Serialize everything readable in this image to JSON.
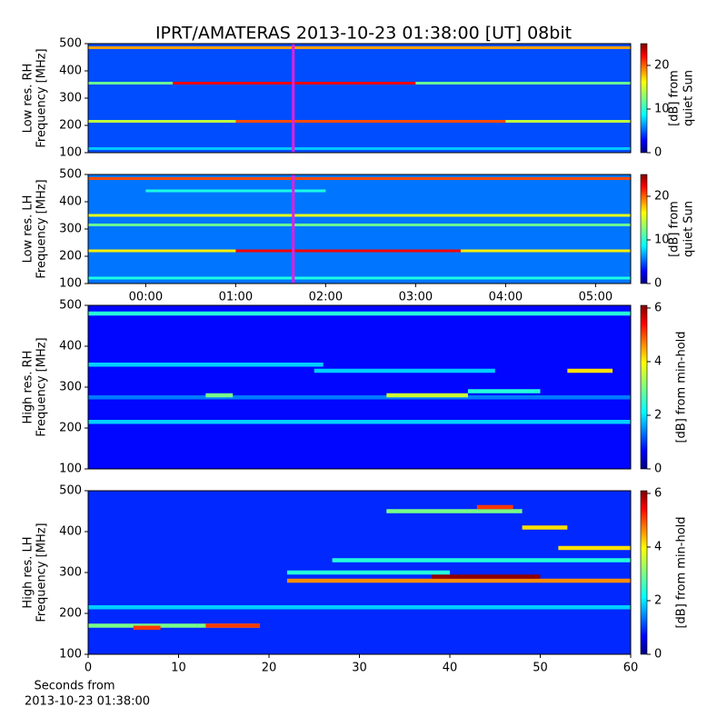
{
  "figure_title": "IPRT/AMATERAS 2013-10-23 01:38:00 [UT]   08bit",
  "xlabel_lines": [
    "Seconds from",
    "2013-10-23 01:38:00"
  ],
  "chart_data": [
    {
      "type": "heatmap",
      "ylabel_lines": [
        "Low res. RH",
        "Frequency [MHz]"
      ],
      "xlim": [
        -0.64,
        5.39
      ],
      "ylim": [
        100,
        500
      ],
      "yticks": [
        100,
        200,
        300,
        400,
        500
      ],
      "clim": [
        0,
        25
      ],
      "cticks": [
        0,
        10,
        20
      ],
      "clabel_lines": [
        "[dB] from",
        "quiet Sun"
      ],
      "colormap": "jet",
      "background_level": 5,
      "marker_x": 1.64,
      "marker_color": "#e020e0",
      "features": [
        {
          "x0": -0.64,
          "x1": 5.39,
          "freq": 485,
          "level": 18
        },
        {
          "x0": -0.64,
          "x1": 5.39,
          "freq": 355,
          "level": 12
        },
        {
          "x0": 0.3,
          "x1": 3.0,
          "freq": 355,
          "level": 22
        },
        {
          "x0": -0.64,
          "x1": 5.39,
          "freq": 215,
          "level": 14
        },
        {
          "x0": 1,
          "x1": 4,
          "freq": 215,
          "level": 20
        },
        {
          "x0": -0.64,
          "x1": 5.39,
          "freq": 115,
          "level": 8
        }
      ]
    },
    {
      "type": "heatmap",
      "ylabel_lines": [
        "Low res. LH",
        "Frequency [MHz]"
      ],
      "xlim": [
        -0.64,
        5.39
      ],
      "ylim": [
        100,
        500
      ],
      "yticks": [
        100,
        200,
        300,
        400,
        500
      ],
      "xticks": [
        {
          "value": 0,
          "label": "00:00"
        },
        {
          "value": 1,
          "label": "01:00"
        },
        {
          "value": 2,
          "label": "02:00"
        },
        {
          "value": 3,
          "label": "03:00"
        },
        {
          "value": 4,
          "label": "04:00"
        },
        {
          "value": 5,
          "label": "05:00"
        }
      ],
      "clim": [
        0,
        25
      ],
      "cticks": [
        0,
        10,
        20
      ],
      "clabel_lines": [
        "[dB] from",
        "quiet Sun"
      ],
      "colormap": "jet",
      "background_level": 6,
      "marker_x": 1.64,
      "marker_color": "#e020e0",
      "features": [
        {
          "x0": -0.64,
          "x1": 5.39,
          "freq": 485,
          "level": 20
        },
        {
          "x0": 0,
          "x1": 2,
          "freq": 440,
          "level": 10
        },
        {
          "x0": -0.64,
          "x1": 5.39,
          "freq": 350,
          "level": 15
        },
        {
          "x0": -0.64,
          "x1": 5.39,
          "freq": 315,
          "level": 12
        },
        {
          "x0": -0.64,
          "x1": 5.39,
          "freq": 220,
          "level": 16
        },
        {
          "x0": 1,
          "x1": 3.5,
          "freq": 220,
          "level": 22
        },
        {
          "x0": -0.64,
          "x1": 5.39,
          "freq": 120,
          "level": 10
        }
      ]
    },
    {
      "type": "heatmap",
      "ylabel_lines": [
        "High res. RH",
        "Frequency [MHz]"
      ],
      "xlim": [
        0,
        60
      ],
      "ylim": [
        100,
        500
      ],
      "yticks": [
        100,
        200,
        300,
        400,
        500
      ],
      "clim": [
        0,
        6.1
      ],
      "cticks": [
        0,
        2,
        4,
        6
      ],
      "clabel_lines": [
        "[dB] from min-hold"
      ],
      "colormap": "jet",
      "background_level": 0.8,
      "features": [
        {
          "x0": 0,
          "x1": 60,
          "freq": 480,
          "level": 2.5
        },
        {
          "x0": 0,
          "x1": 26,
          "freq": 355,
          "level": 2
        },
        {
          "x0": 0,
          "x1": 60,
          "freq": 275,
          "level": 1.5
        },
        {
          "x0": 13,
          "x1": 16,
          "freq": 280,
          "level": 3
        },
        {
          "x0": 33,
          "x1": 42,
          "freq": 280,
          "level": 3.5
        },
        {
          "x0": 42,
          "x1": 50,
          "freq": 290,
          "level": 2.5
        },
        {
          "x0": 53,
          "x1": 58,
          "freq": 340,
          "level": 4
        },
        {
          "x0": 25,
          "x1": 45,
          "freq": 340,
          "level": 2
        },
        {
          "x0": 0,
          "x1": 60,
          "freq": 215,
          "level": 2
        }
      ]
    },
    {
      "type": "heatmap",
      "ylabel_lines": [
        "High res. LH",
        "Frequency [MHz]"
      ],
      "xlim": [
        0,
        60
      ],
      "ylim": [
        100,
        500
      ],
      "yticks": [
        100,
        200,
        300,
        400,
        500
      ],
      "xticks": [
        0,
        10,
        20,
        30,
        40,
        50,
        60
      ],
      "clim": [
        0,
        6.1
      ],
      "cticks": [
        0,
        2,
        4,
        6
      ],
      "clabel_lines": [
        "[dB] from min-hold"
      ],
      "colormap": "jet",
      "background_level": 1,
      "features": [
        {
          "x0": 22,
          "x1": 60,
          "freq": 280,
          "level": 4.5
        },
        {
          "x0": 38,
          "x1": 50,
          "freq": 290,
          "level": 6
        },
        {
          "x0": 0,
          "x1": 19,
          "freq": 170,
          "level": 3
        },
        {
          "x0": 5,
          "x1": 8,
          "freq": 165,
          "level": 5
        },
        {
          "x0": 13,
          "x1": 19,
          "freq": 170,
          "level": 5
        },
        {
          "x0": 27,
          "x1": 60,
          "freq": 330,
          "level": 2.5
        },
        {
          "x0": 52,
          "x1": 60,
          "freq": 360,
          "level": 4
        },
        {
          "x0": 33,
          "x1": 48,
          "freq": 450,
          "level": 3
        },
        {
          "x0": 43,
          "x1": 47,
          "freq": 460,
          "level": 5
        },
        {
          "x0": 48,
          "x1": 53,
          "freq": 410,
          "level": 4
        },
        {
          "x0": 22,
          "x1": 40,
          "freq": 300,
          "level": 2.5
        },
        {
          "x0": 0,
          "x1": 60,
          "freq": 215,
          "level": 2
        }
      ]
    }
  ]
}
